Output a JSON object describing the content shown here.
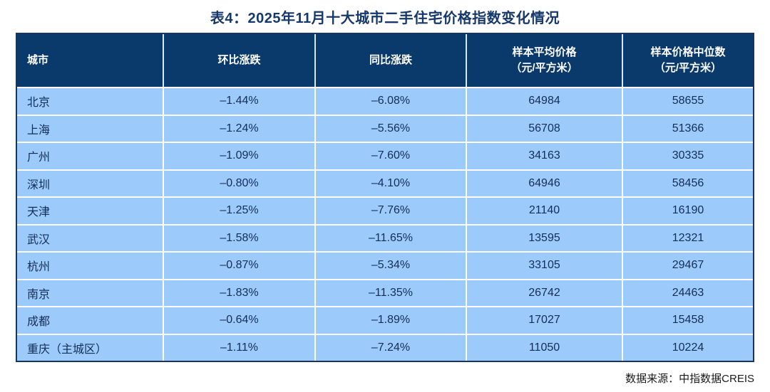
{
  "page": {
    "title": "表4：2025年11月十大城市二手住宅价格指数变化情况",
    "source_note": "数据来源：中指数据CREIS"
  },
  "colors": {
    "header_bg": "#0a396b",
    "row_bg": "#9ccafa",
    "grid_line": "#ffffff",
    "outer_border": "#16365f",
    "title_text": "#17386b",
    "cell_text": "#142e56",
    "header_text": "#ffffff"
  },
  "table": {
    "headers": [
      "城市",
      "环比涨跌",
      "同比涨跌",
      "样本平均价格\n（元/平方米）",
      "样本价格中位数\n（元/平方米）"
    ],
    "rows": [
      [
        "北京",
        "–1.44%",
        "–6.08%",
        "64984",
        "58655"
      ],
      [
        "上海",
        "–1.24%",
        "–5.56%",
        "56708",
        "51366"
      ],
      [
        "广州",
        "–1.09%",
        "–7.60%",
        "34163",
        "30335"
      ],
      [
        "深圳",
        "–0.80%",
        "–4.10%",
        "64946",
        "58456"
      ],
      [
        "天津",
        "–1.25%",
        "–7.76%",
        "21140",
        "16190"
      ],
      [
        "武汉",
        "–1.58%",
        "–11.65%",
        "13595",
        "12321"
      ],
      [
        "杭州",
        "–0.87%",
        "–5.34%",
        "33105",
        "29467"
      ],
      [
        "南京",
        "–1.83%",
        "–11.35%",
        "26742",
        "24463"
      ],
      [
        "成都",
        "–0.64%",
        "–1.89%",
        "17027",
        "15458"
      ],
      [
        "重庆（主城区）",
        "–1.11%",
        "–7.24%",
        "11050",
        "10224"
      ]
    ]
  },
  "chart_data": {
    "type": "table",
    "title": "表4：2025年11月十大城市二手住宅价格指数变化情况",
    "columns": [
      "城市",
      "环比涨跌",
      "同比涨跌",
      "样本平均价格（元/平方米）",
      "样本价格中位数（元/平方米）"
    ],
    "rows": [
      {
        "city": "北京",
        "mom_change_pct": -1.44,
        "yoy_change_pct": -6.08,
        "avg_price": 64984,
        "median_price": 58655
      },
      {
        "city": "上海",
        "mom_change_pct": -1.24,
        "yoy_change_pct": -5.56,
        "avg_price": 56708,
        "median_price": 51366
      },
      {
        "city": "广州",
        "mom_change_pct": -1.09,
        "yoy_change_pct": -7.6,
        "avg_price": 34163,
        "median_price": 30335
      },
      {
        "city": "深圳",
        "mom_change_pct": -0.8,
        "yoy_change_pct": -4.1,
        "avg_price": 64946,
        "median_price": 58456
      },
      {
        "city": "天津",
        "mom_change_pct": -1.25,
        "yoy_change_pct": -7.76,
        "avg_price": 21140,
        "median_price": 16190
      },
      {
        "city": "武汉",
        "mom_change_pct": -1.58,
        "yoy_change_pct": -11.65,
        "avg_price": 13595,
        "median_price": 12321
      },
      {
        "city": "杭州",
        "mom_change_pct": -0.87,
        "yoy_change_pct": -5.34,
        "avg_price": 33105,
        "median_price": 29467
      },
      {
        "city": "南京",
        "mom_change_pct": -1.83,
        "yoy_change_pct": -11.35,
        "avg_price": 26742,
        "median_price": 24463
      },
      {
        "city": "成都",
        "mom_change_pct": -0.64,
        "yoy_change_pct": -1.89,
        "avg_price": 17027,
        "median_price": 15458
      },
      {
        "city": "重庆（主城区）",
        "mom_change_pct": -1.11,
        "yoy_change_pct": -7.24,
        "avg_price": 11050,
        "median_price": 10224
      }
    ],
    "source": "数据来源：中指数据CREIS"
  }
}
